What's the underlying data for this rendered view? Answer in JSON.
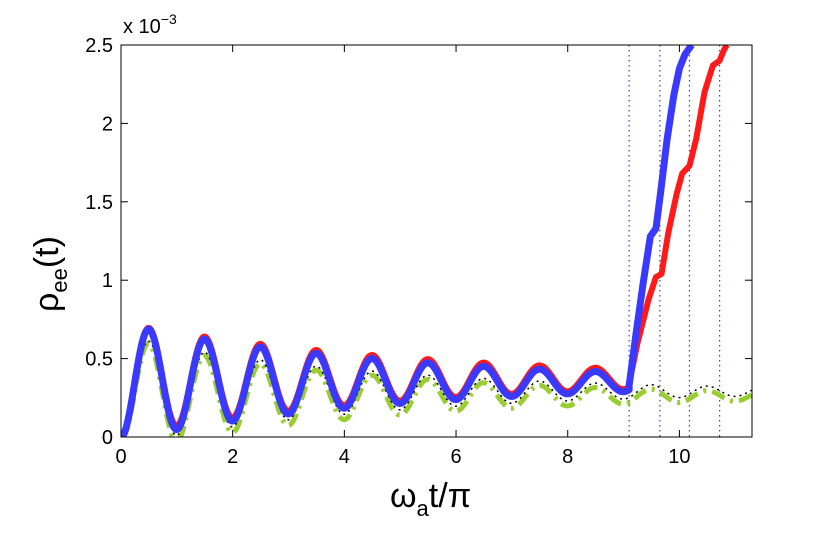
{
  "chart_data": {
    "type": "line",
    "title": "",
    "xlabel": {
      "main": "ω",
      "sub": "a",
      "rest": "t/π"
    },
    "ylabel": {
      "main": "ρ",
      "sub": "ee",
      "rest": "(t)"
    },
    "y_exponent": {
      "prefix": "x 10",
      "power": "−3"
    },
    "xlim": [
      0,
      11.3
    ],
    "ylim": [
      0,
      2.5
    ],
    "x_ticks": [
      0,
      2,
      4,
      6,
      8,
      10
    ],
    "y_ticks": [
      0,
      0.5,
      1,
      1.5,
      2,
      2.5
    ],
    "y_tick_labels": [
      "0",
      "0.5",
      "1",
      "1.5",
      "2",
      "2.5"
    ],
    "grid": false,
    "legend": "none",
    "vlines": [
      9.1,
      9.65,
      10.18,
      10.72
    ],
    "series": [
      {
        "style": {
          "color": "#ff1a1a",
          "width": 6,
          "dash": ""
        },
        "points": [
          [
            9.1,
            0.34
          ],
          [
            9.25,
            0.6
          ],
          [
            9.45,
            0.88
          ],
          [
            9.58,
            1.02
          ],
          [
            9.68,
            1.04
          ],
          [
            9.8,
            1.3
          ],
          [
            9.95,
            1.55
          ],
          [
            10.05,
            1.68
          ],
          [
            10.18,
            1.73
          ],
          [
            10.3,
            1.9
          ],
          [
            10.45,
            2.2
          ],
          [
            10.6,
            2.37
          ],
          [
            10.72,
            2.4
          ],
          [
            10.8,
            2.47
          ],
          [
            10.85,
            2.5
          ]
        ]
      },
      {
        "style": {
          "color": "#3a3aff",
          "width": 7,
          "dash": ""
        },
        "points": [
          [
            9.1,
            0.33
          ],
          [
            9.22,
            0.65
          ],
          [
            9.35,
            0.98
          ],
          [
            9.48,
            1.28
          ],
          [
            9.58,
            1.33
          ],
          [
            9.66,
            1.55
          ],
          [
            9.78,
            1.9
          ],
          [
            9.9,
            2.18
          ],
          [
            10.0,
            2.35
          ],
          [
            10.1,
            2.44
          ],
          [
            10.18,
            2.48
          ],
          [
            10.22,
            2.5
          ]
        ]
      },
      {
        "style": {
          "color": "#9acd32",
          "width": 5,
          "dash": "14,6,3,6"
        },
        "points": []
      },
      {
        "style": {
          "color": "#000000",
          "width": 1.5,
          "dash": "2,4"
        },
        "points": []
      }
    ]
  }
}
